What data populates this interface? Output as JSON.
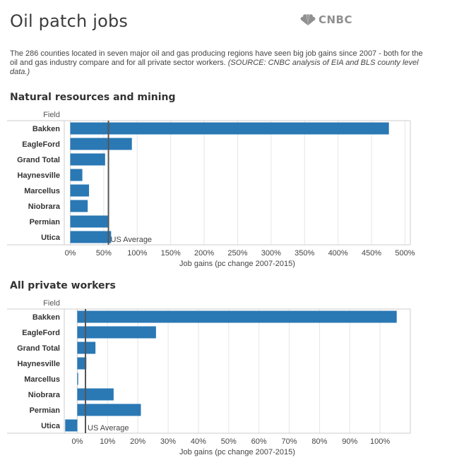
{
  "header": {
    "title": "Oil patch jobs",
    "logo_text": "CNBC",
    "logo_icon": "peacock-icon",
    "description": "The 286 counties located in seven major oil and gas producing regions have seen big job gains since 2007 - both for the oil and gas industry compare and for all private sector workers.",
    "source_note": "(SOURCE: CNBC analysis of EIA and BLS county level data.)"
  },
  "colors": {
    "bar": "#2a78b4",
    "ref_line": "#555555",
    "grid": "#e6e6e6",
    "axis": "#cccccc"
  },
  "chart_data": [
    {
      "type": "bar",
      "orientation": "horizontal",
      "title": "Natural resources and mining",
      "row_header": "Field",
      "categories": [
        "Bakken",
        "EagleFord",
        "Grand Total",
        "Haynesville",
        "Marcellus",
        "Niobrara",
        "Permian",
        "Utica"
      ],
      "values": [
        476,
        92,
        52,
        18,
        28,
        26,
        56,
        61
      ],
      "xlim": [
        -9,
        508
      ],
      "ticks": [
        0,
        50,
        100,
        150,
        200,
        250,
        300,
        350,
        400,
        450,
        500
      ],
      "tick_labels": [
        "0%",
        "50%",
        "100%",
        "150%",
        "200%",
        "250%",
        "300%",
        "350%",
        "400%",
        "450%",
        "500%"
      ],
      "xlabel": "Job gains (pc change 2007-2015)",
      "reference_line": {
        "value": 57,
        "label": "US Average"
      }
    },
    {
      "type": "bar",
      "orientation": "horizontal",
      "title": "All private workers",
      "row_header": "Field",
      "categories": [
        "Bakken",
        "EagleFord",
        "Grand Total",
        "Haynesville",
        "Marcellus",
        "Niobrara",
        "Permian",
        "Utica"
      ],
      "values": [
        105.5,
        26,
        6,
        3,
        0.3,
        12,
        21,
        -4
      ],
      "xlim": [
        -4.3,
        110
      ],
      "ticks": [
        0,
        10,
        20,
        30,
        40,
        50,
        60,
        70,
        80,
        90,
        100
      ],
      "tick_labels": [
        "0%",
        "10%",
        "20%",
        "30%",
        "40%",
        "50%",
        "60%",
        "70%",
        "80%",
        "90%",
        "100%"
      ],
      "xlabel": "Job gains (pc change 2007-2015)",
      "reference_line": {
        "value": 2.7,
        "label": "US Average"
      }
    }
  ]
}
